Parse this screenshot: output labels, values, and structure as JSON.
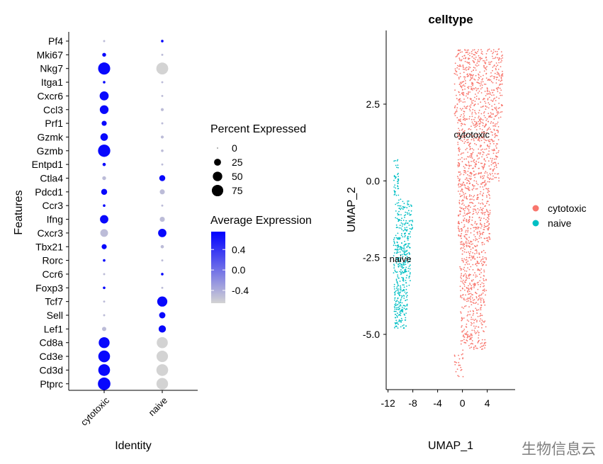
{
  "chart_data": [
    {
      "type": "dotplot",
      "xlabel": "Identity",
      "ylabel": "Features",
      "categories": [
        "cytotoxic",
        "naive"
      ],
      "features": [
        "Pf4",
        "Mki67",
        "Nkg7",
        "Itga1",
        "Cxcr6",
        "Ccl3",
        "Prf1",
        "Gzmk",
        "Gzmb",
        "Entpd1",
        "Ctla4",
        "Pdcd1",
        "Ccr3",
        "Ifng",
        "Cxcr3",
        "Tbx21",
        "Rorc",
        "Ccr6",
        "Foxp3",
        "Tcf7",
        "Sell",
        "Lef1",
        "Cd8a",
        "Cd3e",
        "Cd3d",
        "Ptprc"
      ],
      "percent_expressed": {
        "cytotoxic": [
          1,
          6,
          85,
          2,
          45,
          42,
          12,
          30,
          88,
          4,
          6,
          18,
          2,
          38,
          32,
          12,
          2,
          1,
          2,
          1,
          1,
          8,
          68,
          80,
          80,
          92
        ],
        "naive": [
          2,
          1,
          82,
          1,
          1,
          3,
          1,
          3,
          2,
          1,
          18,
          12,
          1,
          12,
          38,
          4,
          1,
          2,
          1,
          58,
          20,
          28,
          70,
          76,
          80,
          78
        ]
      },
      "average_expression": {
        "cytotoxic": [
          -0.5,
          0.7,
          0.7,
          0.7,
          0.7,
          0.7,
          0.7,
          0.7,
          0.7,
          0.7,
          -0.5,
          0.7,
          0.7,
          0.7,
          -0.5,
          0.7,
          0.7,
          -0.5,
          0.7,
          -0.5,
          -0.5,
          -0.5,
          0.7,
          0.7,
          0.7,
          0.7
        ],
        "naive": [
          0.7,
          -0.5,
          -0.7,
          -0.5,
          -0.5,
          -0.5,
          -0.5,
          -0.5,
          -0.5,
          -0.5,
          0.7,
          -0.5,
          -0.5,
          -0.5,
          0.7,
          -0.5,
          -0.5,
          0.7,
          -0.5,
          0.7,
          0.7,
          0.7,
          -0.7,
          -0.7,
          -0.7,
          -0.7
        ]
      },
      "legend_size": {
        "title": "Percent Expressed",
        "values": [
          0,
          25,
          50,
          75
        ],
        "labels": [
          "0",
          "25",
          "50",
          "75"
        ]
      },
      "legend_color": {
        "title": "Average Expression",
        "range": [
          -0.65,
          0.75
        ],
        "tick_values": [
          0.4,
          0.0,
          -0.4
        ],
        "tick_labels": [
          "0.4",
          "0.0",
          "-0.4"
        ],
        "low_color": "#d3d3d3",
        "high_color": "#0000ff"
      },
      "grid": false
    },
    {
      "type": "scatter",
      "title": "celltype",
      "xlabel": "UMAP_1",
      "ylabel": "UMAP_2",
      "xlim": [
        -12.3,
        8.5
      ],
      "ylim": [
        -6.8,
        4.9
      ],
      "x_ticks": [
        -12,
        -8,
        -4,
        0,
        4
      ],
      "x_tick_labels": [
        "-12",
        "-8",
        "-4",
        "0",
        "4"
      ],
      "y_ticks": [
        2.5,
        0.0,
        -2.5,
        -5.0
      ],
      "y_tick_labels": [
        "2.5",
        "0.0",
        "-2.5",
        "-5.0"
      ],
      "series": [
        {
          "name": "cytotoxic",
          "color": "#F8766D",
          "label": "cytotoxic",
          "label_position": [
            1.5,
            1.5
          ],
          "regions": [
            {
              "y_range": [
                2.0,
                4.3
              ],
              "x_range": [
                -1.3,
                6.5
              ],
              "n": 520
            },
            {
              "y_range": [
                0.0,
                2.0
              ],
              "x_range": [
                -0.8,
                5.9
              ],
              "n": 420
            },
            {
              "y_range": [
                -2.0,
                0.0
              ],
              "x_range": [
                -0.7,
                4.5
              ],
              "n": 360
            },
            {
              "y_range": [
                -4.0,
                -2.0
              ],
              "x_range": [
                -0.4,
                3.9
              ],
              "n": 280
            },
            {
              "y_range": [
                -5.5,
                -4.0
              ],
              "x_range": [
                -0.3,
                3.8
              ],
              "n": 160
            },
            {
              "y_range": [
                -6.4,
                -5.5
              ],
              "x_range": [
                -1.3,
                0.2
              ],
              "n": 25
            }
          ]
        },
        {
          "name": "naive",
          "color": "#00BFC4",
          "label": "naive",
          "label_position": [
            -10.0,
            -2.55
          ],
          "regions": [
            {
              "y_range": [
                -0.5,
                0.7
              ],
              "x_range": [
                -11.1,
                -10.3
              ],
              "n": 40
            },
            {
              "y_range": [
                -1.8,
                -0.6
              ],
              "x_range": [
                -10.8,
                -8.0
              ],
              "n": 110
            },
            {
              "y_range": [
                -3.5,
                -1.8
              ],
              "x_range": [
                -11.1,
                -8.4
              ],
              "n": 210
            },
            {
              "y_range": [
                -4.8,
                -3.5
              ],
              "x_range": [
                -11.0,
                -8.9
              ],
              "n": 150
            }
          ]
        }
      ],
      "legend": {
        "position": "right",
        "entries": [
          "cytotoxic",
          "naive"
        ]
      },
      "grid": false
    }
  ],
  "watermark": "生物信息云"
}
